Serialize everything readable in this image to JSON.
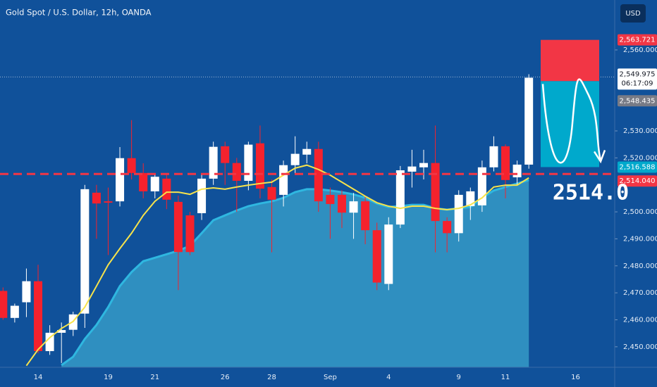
{
  "header": {
    "title": "Gold Spot / U.S. Dollar, 12h, OANDA",
    "currency_button": "USD"
  },
  "chart_data": {
    "type": "candlestick",
    "categories": [
      null,
      null,
      null,
      "14",
      null,
      null,
      null,
      null,
      null,
      "19",
      null,
      null,
      null,
      "21",
      null,
      null,
      null,
      null,
      null,
      "26",
      null,
      null,
      null,
      "28",
      null,
      null,
      null,
      null,
      "Sep",
      null,
      null,
      null,
      null,
      "4",
      null,
      null,
      null,
      null,
      null,
      "9",
      null,
      null,
      null,
      "11",
      null,
      null,
      null,
      null,
      null,
      "16"
    ],
    "open": [
      2470.7,
      2460.7,
      2466.5,
      2474.3,
      2448.4,
      2455.2,
      2456.3,
      2462.3,
      2507.1,
      2503.9,
      2503.9,
      2519.9,
      2514.4,
      2507.6,
      2512.3,
      2503.7,
      2498.7,
      2499.5,
      2512.3,
      2524.3,
      2518.1,
      2511.5,
      2525.4,
      2509.2,
      2506.3,
      2517.3,
      2521.2,
      2523.3,
      2506.3,
      2506.3,
      2499.7,
      2503.9,
      2493.2,
      2473.3,
      2495.3,
      2514.9,
      2516.5,
      2518.1,
      2496.6,
      2492.1,
      2502.1,
      2502.4,
      2516.5,
      2524.3,
      2512.8,
      2517.5,
      null,
      null,
      null,
      null
    ],
    "high": [
      2472,
      2466,
      2479,
      2480.4,
      2458,
      2459,
      2463,
      2510,
      2510,
      2509,
      2524,
      2534,
      2518,
      2514,
      2514,
      2506,
      2500,
      2514,
      2526,
      2526,
      2520,
      2526,
      2532,
      2512,
      2519,
      2528,
      2526,
      2526,
      2509,
      2508,
      2507,
      2506,
      2496,
      2498,
      2517,
      2523,
      2523,
      2532,
      2498,
      2508,
      2509,
      2519,
      2528,
      2525,
      2519,
      2551,
      null,
      null,
      null,
      null
    ],
    "low": [
      2460,
      2459,
      2461,
      2447.6,
      2447,
      2444,
      2454,
      2457,
      2490,
      2484,
      2502,
      2512,
      2505,
      2505,
      2501,
      2471,
      2484,
      2497,
      2510,
      2510,
      2500,
      2508,
      2505,
      2485,
      2502,
      2514,
      2518,
      2500,
      2490,
      2494,
      2490,
      2488,
      2471,
      2471,
      2494,
      2509,
      2512,
      2485,
      2485,
      2489,
      2497,
      2500,
      2515,
      2505,
      2510,
      2516,
      null,
      null,
      null,
      null
    ],
    "close": [
      2460.7,
      2465.2,
      2474.3,
      2448.4,
      2455.2,
      2456.2,
      2462,
      2508.4,
      2503.1,
      2503.4,
      2519.9,
      2514.4,
      2507.6,
      2513,
      2504.5,
      2485.1,
      2485.1,
      2512.3,
      2524.1,
      2518.1,
      2511.5,
      2524.9,
      2508.6,
      2504.5,
      2517.3,
      2521.5,
      2523.3,
      2503.9,
      2502.9,
      2499.7,
      2503.9,
      2493.2,
      2473.8,
      2495.3,
      2515.4,
      2516.8,
      2518.1,
      2496.6,
      2492.1,
      2506.3,
      2507.6,
      2516.5,
      2524.3,
      2511.8,
      2517.5,
      2549.7,
      null,
      null,
      null,
      null
    ],
    "up_color": "#ffffff",
    "down_color": "#f5222d",
    "ma_line": {
      "color": "#f7e34b",
      "values": [
        null,
        null,
        2443,
        2449,
        2453.4,
        2456.8,
        2459.4,
        2464.7,
        2472.5,
        2480.4,
        2486.4,
        2492.1,
        2498.7,
        2503.9,
        2507.3,
        2507.3,
        2506.5,
        2508.4,
        2508.9,
        2508.4,
        2509.2,
        2509.9,
        2510.5,
        2511,
        2513.6,
        2516.2,
        2517.3,
        2515.7,
        2513.6,
        2511,
        2508.4,
        2505.8,
        2503.4,
        2502.1,
        2501.3,
        2502.1,
        2502.1,
        2501.3,
        2500.8,
        2501.3,
        2502.6,
        2505.2,
        2509.2,
        2509.9,
        2509.9,
        2512.6,
        null,
        null,
        null,
        null
      ]
    },
    "ma_area": {
      "color": "#2f8fc0",
      "line_color": "#2fb7e0",
      "values": [
        null,
        null,
        null,
        null,
        null,
        2443.2,
        2446.3,
        2452.9,
        2458.1,
        2464.7,
        2472.5,
        2477.7,
        2481.7,
        2483,
        2484.3,
        2485.6,
        2487.4,
        2492.1,
        2496.9,
        2498.7,
        2500.5,
        2502.1,
        2503.1,
        2503.9,
        2505.2,
        2507.3,
        2508.4,
        2508.4,
        2507.9,
        2507.3,
        2506.5,
        2505.2,
        2503.1,
        2501.8,
        2502.1,
        2502.6,
        2502.6,
        2501.3,
        2500.8,
        2501.3,
        2501.8,
        2505.2,
        2507.9,
        2509.2,
        2510.5,
        2511.8,
        null,
        null,
        null,
        null
      ]
    },
    "ylim": [
      2442.4,
      2578.5
    ],
    "yticks": [
      {
        "value": 2450,
        "label": "2,450.000"
      },
      {
        "value": 2460,
        "label": "2,460.000"
      },
      {
        "value": 2470,
        "label": "2,470.000"
      },
      {
        "value": 2480,
        "label": "2,480.000"
      },
      {
        "value": 2490,
        "label": "2,490.000"
      },
      {
        "value": 2500,
        "label": "2,500.000"
      },
      {
        "value": 2520,
        "label": "2,520.000"
      },
      {
        "value": 2530,
        "label": "2,530.000"
      },
      {
        "value": 2560,
        "label": "2,560.000"
      }
    ],
    "levels": [
      {
        "value": 2563.721,
        "label": "2,563.721",
        "color": "#f23645"
      },
      {
        "value": 2549.975,
        "label": "2,549.975",
        "countdown": "06:17:09",
        "color": "#ffffff"
      },
      {
        "value": 2548.435,
        "label": "2,548.435",
        "color": "#787b86"
      },
      {
        "value": 2516.588,
        "label": "2,516.588",
        "color": "#00a9cc"
      },
      {
        "value": 2514.04,
        "label": "2,514.040",
        "color": "#f23645"
      }
    ],
    "annotation": "2514.0"
  }
}
